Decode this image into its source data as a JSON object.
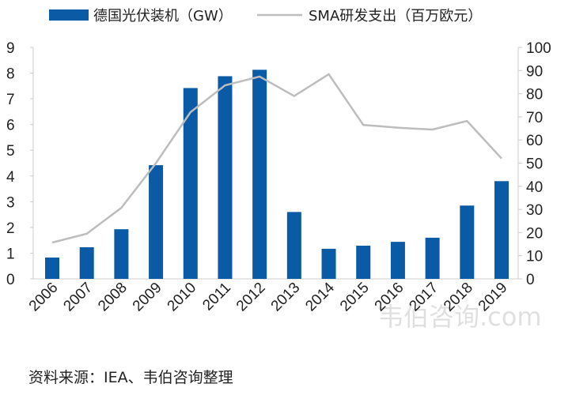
{
  "chart_data": {
    "type": "bar+line",
    "categories": [
      "2006",
      "2007",
      "2008",
      "2009",
      "2010",
      "2011",
      "2012",
      "2013",
      "2014",
      "2015",
      "2016",
      "2017",
      "2018",
      "2019"
    ],
    "series": [
      {
        "name": "德国光伏装机（GW）",
        "type": "bar",
        "axis": "left",
        "color": "#0b5aa6",
        "values": [
          0.83,
          1.23,
          1.93,
          4.42,
          7.42,
          7.88,
          8.13,
          2.6,
          1.17,
          1.29,
          1.44,
          1.6,
          2.85,
          3.8
        ]
      },
      {
        "name": "SMA研发支出（百万欧元）",
        "type": "line",
        "axis": "right",
        "color": "#bdbdbd",
        "values": [
          15.7,
          19.5,
          30.7,
          50,
          72,
          83.6,
          87.4,
          79,
          88.4,
          66.5,
          65.3,
          64.5,
          68.2,
          52
        ]
      }
    ],
    "left_axis": {
      "ylim": [
        0,
        9
      ],
      "ticks": [
        "0",
        "1",
        "2",
        "3",
        "4",
        "5",
        "6",
        "7",
        "8",
        "9"
      ]
    },
    "right_axis": {
      "ylim": [
        0,
        100
      ],
      "ticks": [
        "0",
        "10",
        "20",
        "30",
        "40",
        "50",
        "60",
        "70",
        "80",
        "90",
        "100"
      ]
    },
    "legend": "top",
    "grid": false
  },
  "source": "资料来源：IEA、韦伯咨询整理",
  "watermark": "韦伯咨询.com"
}
